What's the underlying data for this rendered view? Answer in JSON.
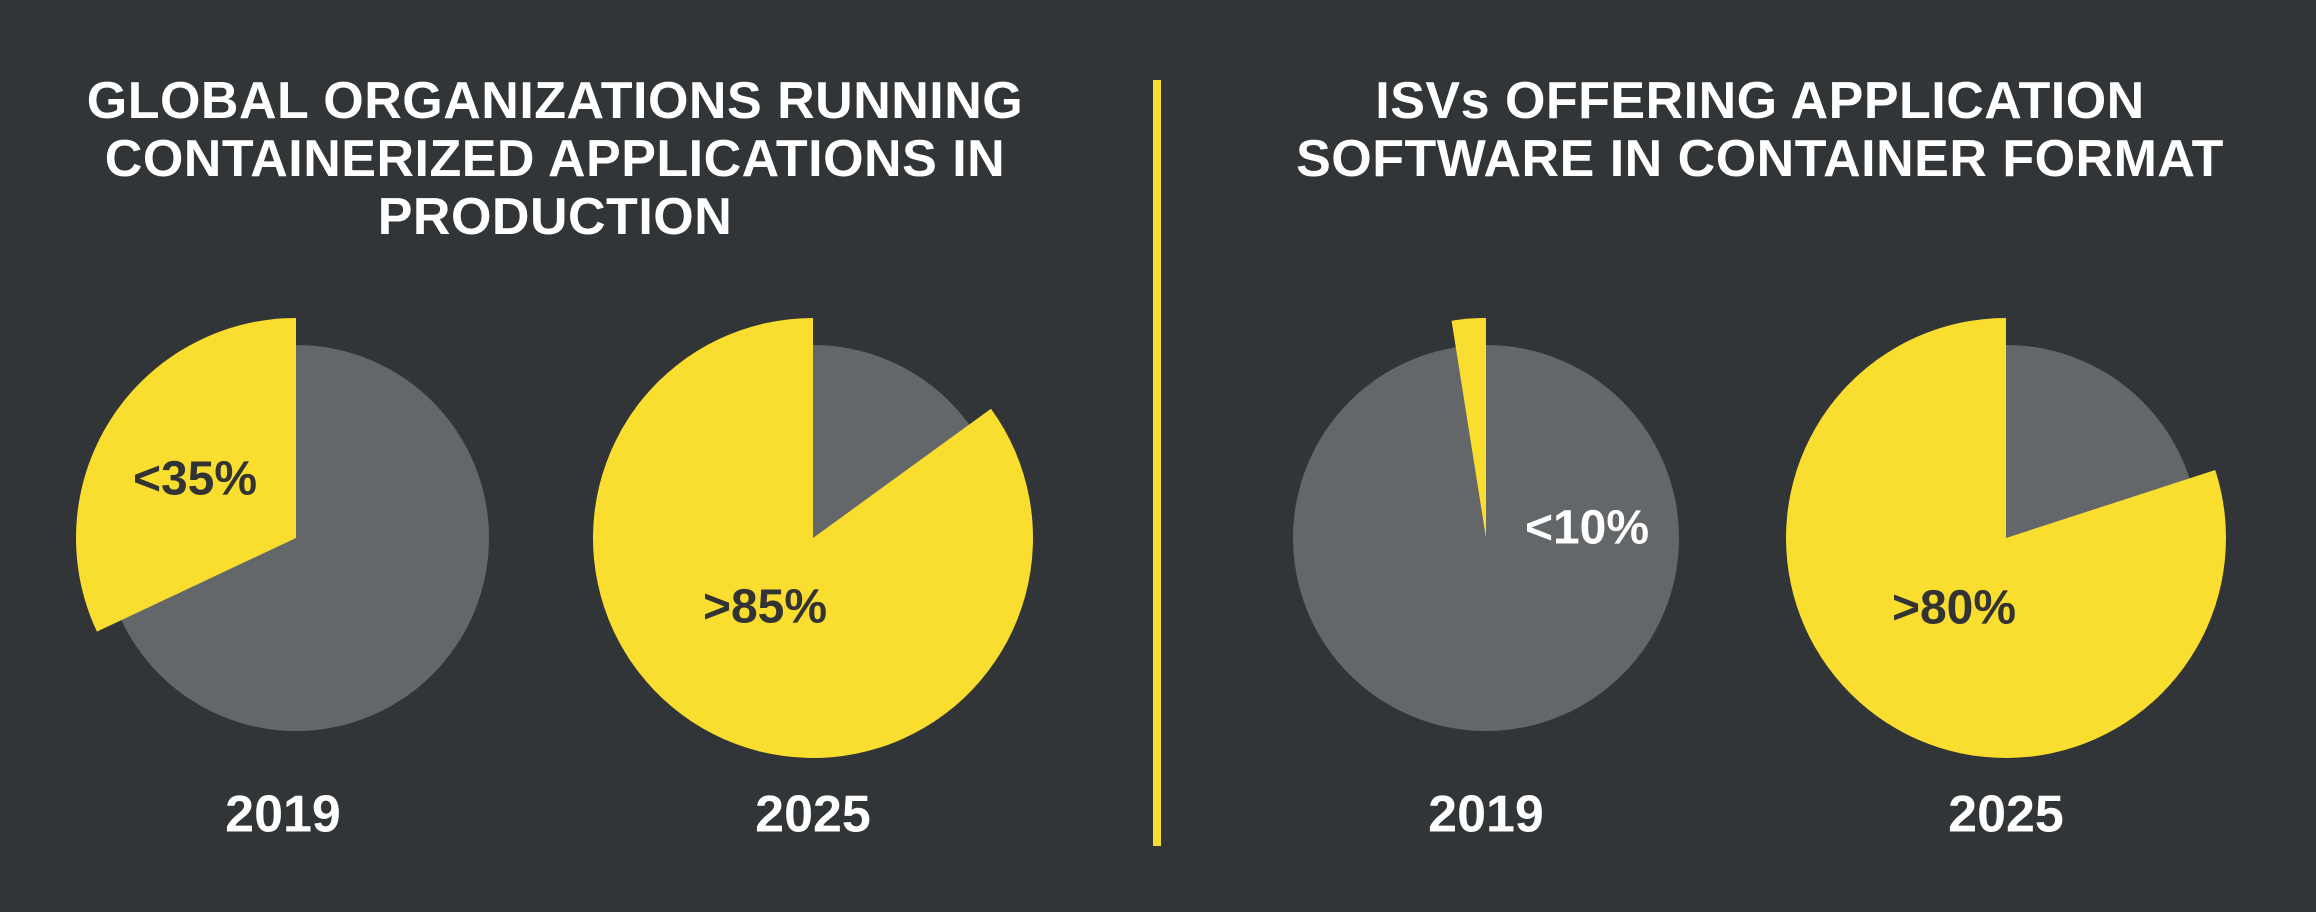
{
  "colors": {
    "background": "#323537",
    "accent": "#f9dd2f",
    "remainder": "#64676a",
    "text_light": "#ffffff",
    "text_dark": "#333333"
  },
  "panels": {
    "left": {
      "title": "GLOBAL ORGANIZATIONS RUNNING CONTAINERIZED APPLICATIONS IN PRODUCTION"
    },
    "right": {
      "title": "ISVs OFFERING APPLICATION SOFTWARE IN CONTAINER FORMAT"
    }
  },
  "chart_data": [
    {
      "type": "pie",
      "panel": "GLOBAL ORGANIZATIONS RUNNING CONTAINERIZED APPLICATIONS IN PRODUCTION",
      "year": "2019",
      "value": 32,
      "label": "<35%",
      "label_color": "dark"
    },
    {
      "type": "pie",
      "panel": "GLOBAL ORGANIZATIONS RUNNING CONTAINERIZED APPLICATIONS IN PRODUCTION",
      "year": "2025",
      "value": 85,
      "label": ">85%",
      "label_color": "dark"
    },
    {
      "type": "pie",
      "panel": "ISVs OFFERING APPLICATION SOFTWARE IN CONTAINER FORMAT",
      "year": "2019",
      "value": 2.5,
      "label": "<10%",
      "label_color": "light"
    },
    {
      "type": "pie",
      "panel": "ISVs OFFERING APPLICATION SOFTWARE IN CONTAINER FORMAT",
      "year": "2025",
      "value": 80,
      "label": ">80%",
      "label_color": "dark"
    }
  ]
}
